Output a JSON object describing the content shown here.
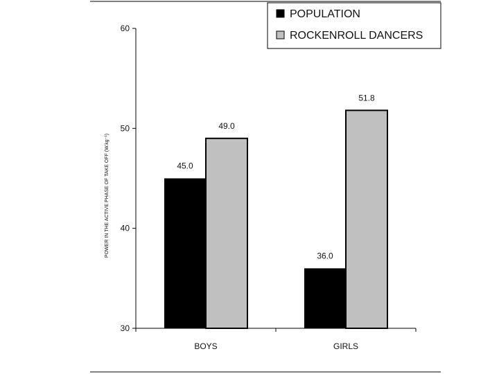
{
  "chart_data": {
    "type": "bar",
    "categories": [
      "BOYS",
      "GIRLS"
    ],
    "series": [
      {
        "name": "POPULATION",
        "values": [
          45.0,
          36.0
        ],
        "color": "#000000"
      },
      {
        "name": "ROCKENROLL DANCERS",
        "values": [
          49.0,
          51.8
        ],
        "color": "#c0c0c0"
      }
    ],
    "data_labels": [
      [
        "45.0",
        "36.0"
      ],
      [
        "49.0",
        "51.8"
      ]
    ],
    "ylabel": "POWER IN THE ACTIVE PHASE OF TAKE OFF (W.kg⁻¹)",
    "ylim": [
      30,
      60
    ],
    "yticks": [
      30,
      40,
      50,
      60
    ],
    "ytick_labels": [
      "30",
      "40",
      "50",
      "60"
    ],
    "grid": false,
    "legend_position": "top-right"
  }
}
